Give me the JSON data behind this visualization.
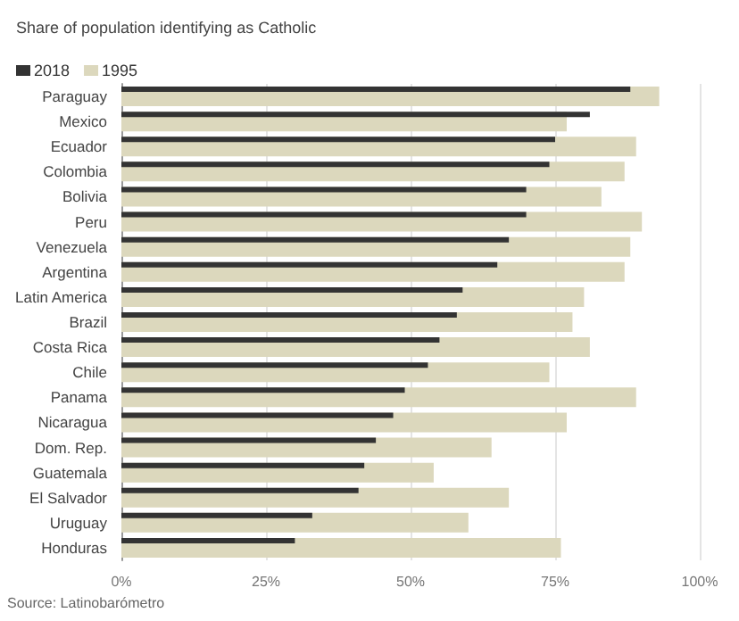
{
  "chart_data": {
    "type": "bar",
    "orientation": "horizontal",
    "title": "Share of population identifying as Catholic",
    "categories": [
      "Paraguay",
      "Mexico",
      "Ecuador",
      "Colombia",
      "Bolivia",
      "Peru",
      "Venezuela",
      "Argentina",
      "Latin America",
      "Brazil",
      "Costa Rica",
      "Chile",
      "Panama",
      "Nicaragua",
      "Dom. Rep.",
      "Guatemala",
      "El Salvador",
      "Uruguay",
      "Honduras"
    ],
    "series": [
      {
        "name": "2018",
        "color": "#333333",
        "values": [
          88,
          81,
          75,
          74,
          70,
          70,
          67,
          65,
          59,
          58,
          55,
          53,
          49,
          47,
          44,
          42,
          41,
          33,
          30
        ]
      },
      {
        "name": "1995",
        "color": "#dcd8bd",
        "values": [
          93,
          77,
          89,
          87,
          83,
          90,
          88,
          87,
          80,
          78,
          81,
          74,
          89,
          77,
          64,
          54,
          67,
          60,
          76
        ]
      }
    ],
    "xlim": [
      0,
      100
    ],
    "xticks": [
      {
        "value": 0,
        "label": "0%"
      },
      {
        "value": 25,
        "label": "25%"
      },
      {
        "value": 50,
        "label": "50%"
      },
      {
        "value": 75,
        "label": "75%"
      },
      {
        "value": 100,
        "label": "100%"
      }
    ],
    "grid": "x",
    "legend": "top left",
    "annotations": [
      "Source: Latinobarómetro"
    ]
  }
}
